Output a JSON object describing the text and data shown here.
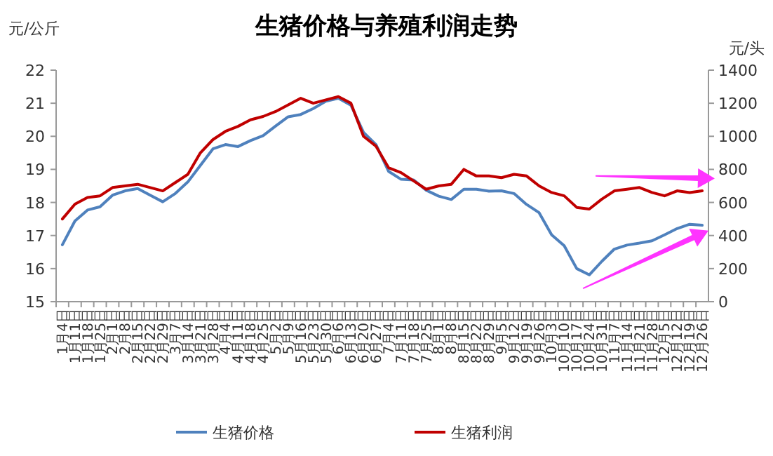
{
  "chart_data": {
    "type": "line",
    "title": "生猪价格与养殖利润走势",
    "ylabel": "元/公斤",
    "y2label": "元/头",
    "categories": [
      "1月4日",
      "1月11日",
      "1月18日",
      "1月25日",
      "2月1日",
      "2月8日",
      "2月15日",
      "2月22日",
      "2月29日",
      "3月7日",
      "3月14日",
      "3月21日",
      "3月28日",
      "4月4日",
      "4月11日",
      "4月18日",
      "4月25日",
      "5月2日",
      "5月9日",
      "5月16日",
      "5月23日",
      "5月30日",
      "6月6日",
      "6月13日",
      "6月20日",
      "6月27日",
      "7月4日",
      "7月11日",
      "7月18日",
      "7月25日",
      "8月1日",
      "8月8日",
      "8月15日",
      "8月22日",
      "8月29日",
      "9月5日",
      "9月12日",
      "9月19日",
      "9月26日",
      "10月3日",
      "10月10日",
      "10月17日",
      "10月24日",
      "10月31日",
      "11月7日",
      "11月14日",
      "11月21日",
      "11月28日",
      "12月5日",
      "12月12日",
      "12月19日",
      "12月26日"
    ],
    "series": [
      {
        "name": "生猪价格",
        "color": "#4f81bd",
        "values": [
          16.72,
          17.44,
          17.77,
          17.87,
          18.22,
          18.35,
          18.42,
          18.22,
          18.02,
          18.27,
          18.62,
          19.12,
          19.62,
          19.75,
          19.69,
          19.87,
          20.02,
          20.31,
          20.59,
          20.66,
          20.84,
          21.06,
          21.15,
          20.94,
          20.12,
          19.75,
          18.94,
          18.7,
          18.68,
          18.37,
          18.19,
          18.09,
          18.4,
          18.4,
          18.34,
          18.35,
          18.27,
          17.94,
          17.69,
          17.02,
          16.69,
          16.0,
          15.81,
          16.22,
          16.59,
          16.71,
          16.77,
          16.84,
          17.02,
          17.21,
          17.34,
          17.31
        ]
      },
      {
        "name": "生猪利润",
        "color": "#c00000",
        "axis": "y2",
        "values": [
          500,
          590,
          630,
          640,
          690,
          700,
          710,
          690,
          670,
          720,
          770,
          900,
          980,
          1030,
          1060,
          1100,
          1120,
          1150,
          1190,
          1230,
          1200,
          1220,
          1240,
          1200,
          1000,
          940,
          810,
          780,
          730,
          680,
          700,
          710,
          800,
          760,
          760,
          750,
          770,
          760,
          700,
          660,
          640,
          570,
          560,
          620,
          670,
          680,
          690,
          660,
          640,
          670,
          660,
          670
        ]
      }
    ],
    "ylim": [
      15,
      22
    ],
    "yticks": [
      15,
      16,
      17,
      18,
      19,
      20,
      21,
      22
    ],
    "y2lim": [
      0,
      1400
    ],
    "y2ticks": [
      0,
      200,
      400,
      600,
      800,
      1000,
      1200,
      1400
    ],
    "legend": "bottom",
    "grid": false
  }
}
